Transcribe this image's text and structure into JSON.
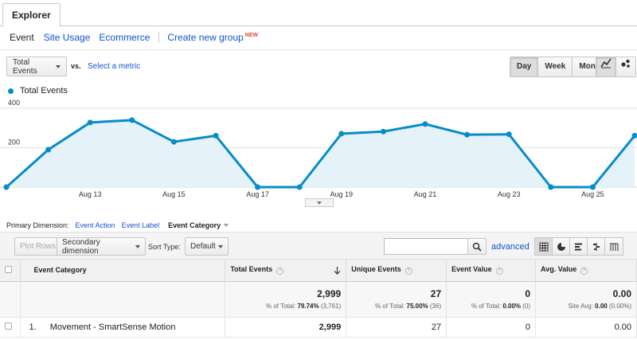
{
  "tabs": {
    "explorer": "Explorer"
  },
  "subnav": {
    "event": "Event",
    "site_usage": "Site Usage",
    "ecommerce": "Ecommerce",
    "create_group": "Create new group",
    "new_badge": "NEW"
  },
  "metric": {
    "selected": "Total Events",
    "vs": "vs.",
    "select_metric": "Select a metric"
  },
  "time_grain": {
    "day": "Day",
    "week": "Week",
    "month": "Month",
    "active": "Day"
  },
  "icons": [
    "line-chart-icon",
    "motion-chart-icon",
    "search-icon",
    "table-view-icon",
    "pie-view-icon",
    "bar-view-icon",
    "comparison-view-icon",
    "pivot-view-icon",
    "sort-desc-icon"
  ],
  "colors": {
    "series": "#058dc7",
    "fill": "#e6f2fa",
    "link": "#1155cc",
    "badge": "#dd4b39"
  },
  "chart_data": {
    "type": "area",
    "legend": [
      "Total Events"
    ],
    "series": [
      {
        "name": "Total Events",
        "values": [
          0,
          190,
          328,
          340,
          230,
          261,
          0,
          0,
          271,
          282,
          320,
          266,
          268,
          0,
          0,
          261
        ]
      }
    ],
    "x": [
      "Aug 11",
      "Aug 12",
      "Aug 13",
      "Aug 14",
      "Aug 15",
      "Aug 16",
      "Aug 17",
      "Aug 18",
      "Aug 19",
      "Aug 20",
      "Aug 21",
      "Aug 22",
      "Aug 23",
      "Aug 24",
      "Aug 25",
      "Aug 26"
    ],
    "xtick_labels": [
      "Aug 13",
      "Aug 15",
      "Aug 17",
      "Aug 19",
      "Aug 21",
      "Aug 23",
      "Aug 25"
    ],
    "ytick_labels": [
      "200",
      "400"
    ],
    "ylim": [
      0,
      400
    ],
    "grid": true
  },
  "primary_dimension": {
    "label": "Primary Dimension:",
    "event_action": "Event Action",
    "event_label": "Event Label",
    "event_category": "Event Category"
  },
  "toolbar": {
    "plot_rows": "Plot Rows",
    "secondary_dimension": "Secondary dimension",
    "sort_type_label": "Sort Type:",
    "sort_type_value": "Default",
    "search_placeholder": "",
    "advanced": "advanced"
  },
  "table": {
    "headers": {
      "category": "Event Category",
      "total_events": "Total Events",
      "unique_events": "Unique Events",
      "event_value": "Event Value",
      "avg_value": "Avg. Value"
    },
    "totals": {
      "total_events": "2,999",
      "total_events_sub_label": "% of Total:",
      "total_events_sub_value": "79.74%",
      "total_events_sub_abs": "(3,761)",
      "unique_events": "27",
      "unique_events_sub_label": "% of Total:",
      "unique_events_sub_value": "75.00%",
      "unique_events_sub_abs": "(36)",
      "event_value": "0",
      "event_value_sub_label": "% of Total:",
      "event_value_sub_value": "0.00%",
      "event_value_sub_abs": "(0)",
      "avg_value": "0.00",
      "avg_value_sub_label": "Site Avg:",
      "avg_value_sub_value": "0.00",
      "avg_value_sub_abs": "(0.00%)"
    },
    "rows": [
      {
        "index": "1.",
        "category": "Movement - SmartSense Motion",
        "total_events": "2,999",
        "unique_events": "27",
        "event_value": "0",
        "avg_value": "0.00"
      }
    ]
  }
}
